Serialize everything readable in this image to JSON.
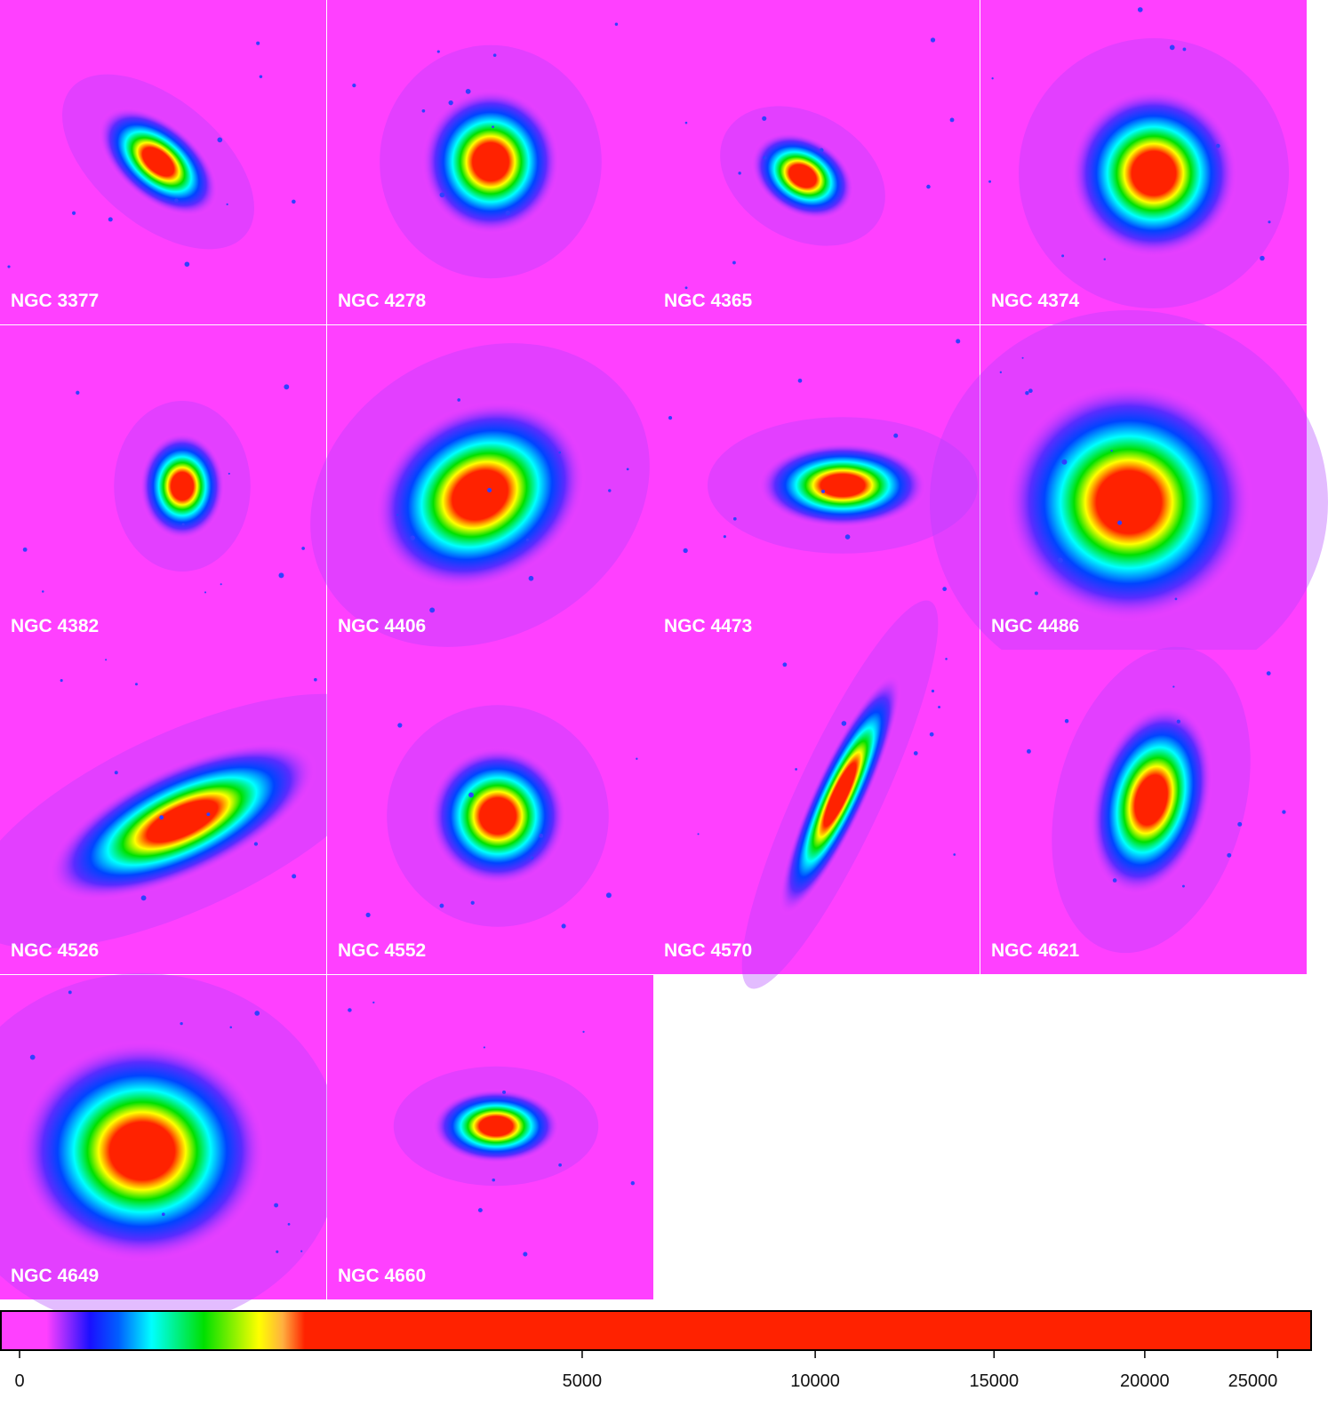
{
  "panels": [
    {
      "label": "NGC 3377"
    },
    {
      "label": "NGC 4278"
    },
    {
      "label": "NGC 4365"
    },
    {
      "label": "NGC 4374"
    },
    {
      "label": "NGC 4382"
    },
    {
      "label": "NGC 4406"
    },
    {
      "label": "NGC 4473"
    },
    {
      "label": "NGC 4486"
    },
    {
      "label": "NGC 4526"
    },
    {
      "label": "NGC 4552"
    },
    {
      "label": "NGC 4570"
    },
    {
      "label": "NGC 4621"
    },
    {
      "label": "NGC 4649"
    },
    {
      "label": "NGC 4660"
    }
  ],
  "colorbar": {
    "range": [
      0,
      26350
    ],
    "scale": "sqrt",
    "ticks": [
      0,
      5000,
      10000,
      15000,
      20000,
      25000
    ]
  }
}
